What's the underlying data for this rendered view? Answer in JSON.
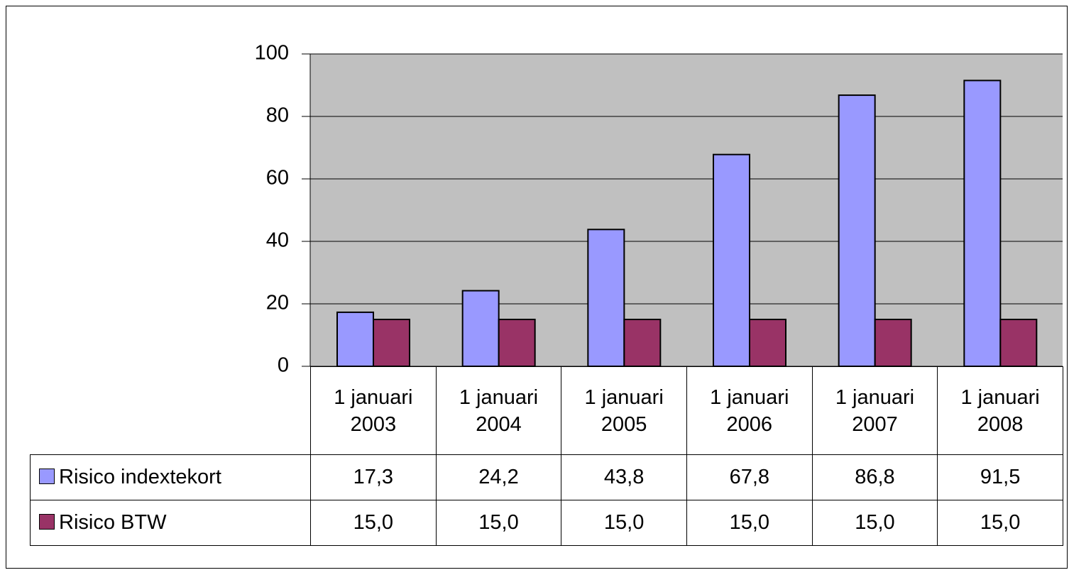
{
  "chart_data": {
    "type": "bar",
    "categories": [
      "1 januari 2003",
      "1 januari 2004",
      "1 januari 2005",
      "1 januari 2006",
      "1 januari 2007",
      "1 januari 2008"
    ],
    "series": [
      {
        "name": "Risico indextekort",
        "color": "#9999ff",
        "values": [
          17.3,
          24.2,
          43.8,
          67.8,
          86.8,
          91.5
        ],
        "value_labels": [
          "17,3",
          "24,2",
          "43,8",
          "67,8",
          "86,8",
          "91,5"
        ]
      },
      {
        "name": "Risico BTW",
        "color": "#993366",
        "values": [
          15.0,
          15.0,
          15.0,
          15.0,
          15.0,
          15.0
        ],
        "value_labels": [
          "15,0",
          "15,0",
          "15,0",
          "15,0",
          "15,0",
          "15,0"
        ]
      }
    ],
    "ylim": [
      0,
      100
    ],
    "yticks": [
      0,
      20,
      40,
      60,
      80,
      100
    ],
    "grid": true,
    "plot_background": "#c0c0c0"
  }
}
